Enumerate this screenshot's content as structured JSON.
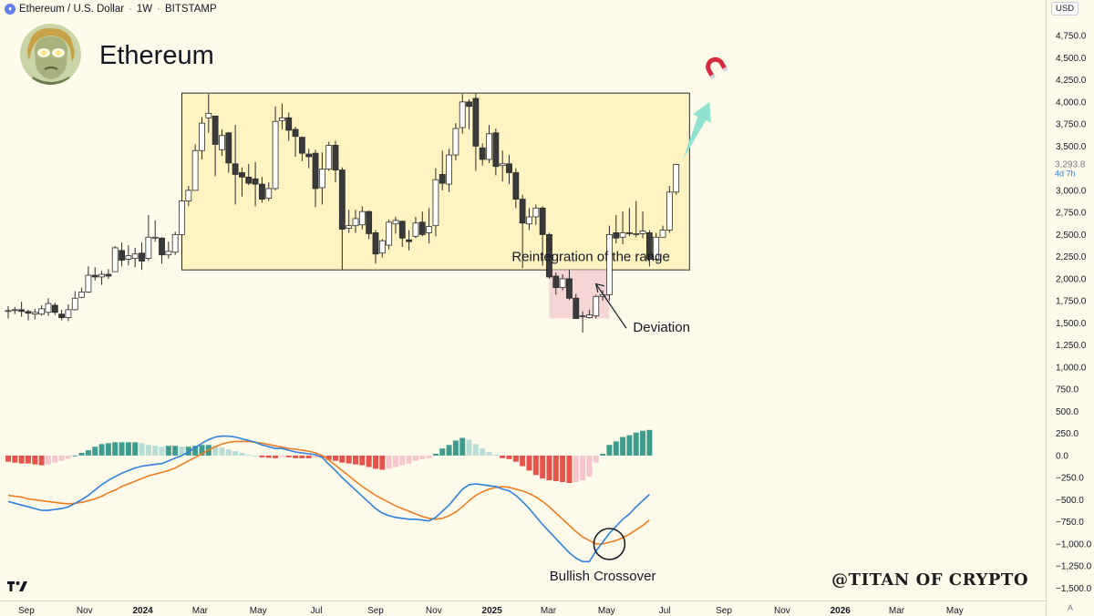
{
  "header": {
    "symbol": "Ethereum / U.S. Dollar",
    "interval": "1W",
    "exchange": "BITSTAMP",
    "separator": "·",
    "eth_icon": "♦"
  },
  "brand": {
    "title": "Ethereum",
    "avatar_icon": "glowing-eyes-avatar"
  },
  "currency": "USD",
  "auto_label": "A",
  "watermark": "@TITAN OF CRYPTO",
  "chart_data": {
    "type": "candlestick",
    "y_axis": {
      "min": -1650,
      "max": 5050,
      "ticks": [
        -1500,
        -1250,
        -1000,
        -750,
        -500,
        -250,
        0,
        250,
        500,
        750,
        1000,
        1250,
        1500,
        1750,
        2000,
        2250,
        2500,
        2750,
        3000,
        3250,
        3500,
        3750,
        4000,
        4250,
        4500,
        4750
      ],
      "tick_labels": [
        "−1,500.0",
        "−1,250.0",
        "−1,000.0",
        "−750.0",
        "−500.0",
        "−250.0",
        "0.0",
        "250.0",
        "500.0",
        "750.0",
        "1,000.0",
        "1,250.0",
        "1,500.0",
        "1,750.0",
        "2,000.0",
        "2,250.0",
        "2,500.0",
        "2,750.0",
        "3,000.0",
        "3,250.0",
        "3,500.0",
        "3,750.0",
        "4,000.0",
        "4,250.0",
        "4,500.0",
        "4,750.0"
      ]
    },
    "x_axis": {
      "start": "2023-08-13",
      "tick_labels": [
        "Sep",
        "Nov",
        "2024",
        "Mar",
        "May",
        "Jul",
        "Sep",
        "Nov",
        "2025",
        "Mar",
        "May",
        "Jul",
        "Sep",
        "Nov",
        "2026",
        "Mar",
        "May"
      ],
      "tick_dates": [
        "2023-09-01",
        "2023-11-01",
        "2024-01-01",
        "2024-03-01",
        "2024-05-01",
        "2024-07-01",
        "2024-09-01",
        "2024-11-01",
        "2025-01-01",
        "2025-03-01",
        "2025-05-01",
        "2025-07-01",
        "2025-09-01",
        "2025-11-01",
        "2026-01-01",
        "2026-03-01",
        "2026-05-01"
      ],
      "bold_ticks": [
        "2024",
        "2025",
        "2026"
      ]
    },
    "last_price": {
      "value": 3293.8,
      "label": "3,293.8",
      "countdown": "4d 7h",
      "color": "#787b86"
    },
    "colors": {
      "up_body": "#ffffff",
      "down_body": "#3a3a3a",
      "wick": "#2b2b2b",
      "macd_line": "#2f7fe0",
      "signal_line": "#ef7d22",
      "hist_up_strong": "#3e9c8f",
      "hist_up_weak": "#b7ddd6",
      "hist_down_strong": "#e5534b",
      "hist_down_weak": "#f7c6cc",
      "range_fill": "#fff3c2",
      "deviation_fill": "#f6d6d4",
      "arrow": "#8fe3d0"
    },
    "candles": [
      {
        "date": "2023-08-13",
        "o": 1640,
        "h": 1690,
        "l": 1550,
        "c": 1640
      },
      {
        "date": "2023-08-20",
        "o": 1640,
        "h": 1680,
        "l": 1600,
        "c": 1650
      },
      {
        "date": "2023-08-27",
        "o": 1650,
        "h": 1740,
        "l": 1570,
        "c": 1630
      },
      {
        "date": "2023-09-03",
        "o": 1630,
        "h": 1650,
        "l": 1530,
        "c": 1610
      },
      {
        "date": "2023-09-10",
        "o": 1600,
        "h": 1660,
        "l": 1540,
        "c": 1620
      },
      {
        "date": "2023-09-17",
        "o": 1600,
        "h": 1700,
        "l": 1580,
        "c": 1660
      },
      {
        "date": "2023-09-24",
        "o": 1620,
        "h": 1780,
        "l": 1580,
        "c": 1720
      },
      {
        "date": "2023-10-01",
        "o": 1700,
        "h": 1730,
        "l": 1590,
        "c": 1620
      },
      {
        "date": "2023-10-08",
        "o": 1600,
        "h": 1650,
        "l": 1530,
        "c": 1560
      },
      {
        "date": "2023-10-15",
        "o": 1560,
        "h": 1710,
        "l": 1520,
        "c": 1650
      },
      {
        "date": "2023-10-22",
        "o": 1650,
        "h": 1860,
        "l": 1640,
        "c": 1780
      },
      {
        "date": "2023-10-29",
        "o": 1790,
        "h": 1900,
        "l": 1780,
        "c": 1850
      },
      {
        "date": "2023-11-05",
        "o": 1850,
        "h": 2140,
        "l": 1840,
        "c": 2040
      },
      {
        "date": "2023-11-12",
        "o": 2040,
        "h": 2130,
        "l": 1980,
        "c": 2020
      },
      {
        "date": "2023-11-19",
        "o": 2020,
        "h": 2090,
        "l": 1930,
        "c": 2050
      },
      {
        "date": "2023-11-26",
        "o": 2050,
        "h": 2110,
        "l": 2000,
        "c": 2030
      },
      {
        "date": "2023-12-03",
        "o": 2080,
        "h": 2370,
        "l": 2080,
        "c": 2350
      },
      {
        "date": "2023-12-10",
        "o": 2320,
        "h": 2410,
        "l": 2140,
        "c": 2210
      },
      {
        "date": "2023-12-17",
        "o": 2220,
        "h": 2380,
        "l": 2150,
        "c": 2260
      },
      {
        "date": "2023-12-24",
        "o": 2230,
        "h": 2350,
        "l": 2130,
        "c": 2280
      },
      {
        "date": "2023-12-31",
        "o": 2290,
        "h": 2410,
        "l": 2100,
        "c": 2200
      },
      {
        "date": "2024-01-07",
        "o": 2230,
        "h": 2720,
        "l": 2200,
        "c": 2470
      },
      {
        "date": "2024-01-14",
        "o": 2470,
        "h": 2660,
        "l": 2420,
        "c": 2470
      },
      {
        "date": "2024-01-21",
        "o": 2460,
        "h": 2470,
        "l": 2170,
        "c": 2270
      },
      {
        "date": "2024-01-28",
        "o": 2270,
        "h": 2420,
        "l": 2230,
        "c": 2310
      },
      {
        "date": "2024-02-04",
        "o": 2300,
        "h": 2530,
        "l": 2270,
        "c": 2500
      },
      {
        "date": "2024-02-11",
        "o": 2500,
        "h": 2910,
        "l": 2480,
        "c": 2880
      },
      {
        "date": "2024-02-18",
        "o": 2880,
        "h": 3050,
        "l": 2820,
        "c": 3000
      },
      {
        "date": "2024-02-25",
        "o": 3000,
        "h": 3520,
        "l": 3000,
        "c": 3450
      },
      {
        "date": "2024-03-03",
        "o": 3450,
        "h": 3830,
        "l": 3350,
        "c": 3760
      },
      {
        "date": "2024-03-10",
        "o": 3820,
        "h": 4090,
        "l": 3650,
        "c": 3870
      },
      {
        "date": "2024-03-17",
        "o": 3840,
        "h": 3840,
        "l": 3160,
        "c": 3520
      },
      {
        "date": "2024-03-24",
        "o": 3460,
        "h": 3690,
        "l": 3390,
        "c": 3620
      },
      {
        "date": "2024-03-31",
        "o": 3650,
        "h": 3660,
        "l": 3200,
        "c": 3310
      },
      {
        "date": "2024-04-07",
        "o": 3300,
        "h": 3740,
        "l": 2840,
        "c": 3180
      },
      {
        "date": "2024-04-14",
        "o": 3200,
        "h": 3260,
        "l": 2930,
        "c": 3150
      },
      {
        "date": "2024-04-21",
        "o": 3150,
        "h": 3300,
        "l": 3060,
        "c": 3080
      },
      {
        "date": "2024-04-28",
        "o": 3130,
        "h": 3320,
        "l": 2820,
        "c": 3070
      },
      {
        "date": "2024-05-05",
        "o": 3070,
        "h": 3150,
        "l": 2860,
        "c": 2900
      },
      {
        "date": "2024-05-12",
        "o": 2910,
        "h": 3090,
        "l": 2880,
        "c": 3020
      },
      {
        "date": "2024-05-19",
        "o": 3020,
        "h": 3950,
        "l": 3000,
        "c": 3780
      },
      {
        "date": "2024-05-26",
        "o": 3790,
        "h": 3980,
        "l": 3690,
        "c": 3820
      },
      {
        "date": "2024-06-02",
        "o": 3820,
        "h": 3880,
        "l": 3560,
        "c": 3680
      },
      {
        "date": "2024-06-09",
        "o": 3690,
        "h": 3720,
        "l": 3380,
        "c": 3610
      },
      {
        "date": "2024-06-16",
        "o": 3600,
        "h": 3610,
        "l": 3330,
        "c": 3420
      },
      {
        "date": "2024-06-23",
        "o": 3410,
        "h": 3470,
        "l": 3250,
        "c": 3380
      },
      {
        "date": "2024-06-30",
        "o": 3420,
        "h": 3460,
        "l": 2810,
        "c": 3020
      },
      {
        "date": "2024-07-07",
        "o": 3030,
        "h": 3430,
        "l": 2840,
        "c": 3240
      },
      {
        "date": "2024-07-14",
        "o": 3240,
        "h": 3550,
        "l": 3220,
        "c": 3510
      },
      {
        "date": "2024-07-21",
        "o": 3510,
        "h": 3560,
        "l": 3090,
        "c": 3230
      },
      {
        "date": "2024-07-28",
        "o": 3230,
        "h": 3260,
        "l": 2100,
        "c": 2560
      },
      {
        "date": "2024-08-04",
        "o": 2570,
        "h": 2780,
        "l": 2520,
        "c": 2600
      },
      {
        "date": "2024-08-11",
        "o": 2600,
        "h": 2780,
        "l": 2520,
        "c": 2680
      },
      {
        "date": "2024-08-18",
        "o": 2610,
        "h": 2820,
        "l": 2560,
        "c": 2760
      },
      {
        "date": "2024-08-25",
        "o": 2760,
        "h": 2770,
        "l": 2450,
        "c": 2510
      },
      {
        "date": "2024-09-01",
        "o": 2520,
        "h": 2550,
        "l": 2170,
        "c": 2280
      },
      {
        "date": "2024-09-08",
        "o": 2290,
        "h": 2450,
        "l": 2240,
        "c": 2430
      },
      {
        "date": "2024-09-15",
        "o": 2380,
        "h": 2670,
        "l": 2330,
        "c": 2640
      },
      {
        "date": "2024-09-22",
        "o": 2620,
        "h": 2700,
        "l": 2510,
        "c": 2660
      },
      {
        "date": "2024-09-29",
        "o": 2650,
        "h": 2660,
        "l": 2360,
        "c": 2460
      },
      {
        "date": "2024-10-06",
        "o": 2440,
        "h": 2550,
        "l": 2320,
        "c": 2420
      },
      {
        "date": "2024-10-13",
        "o": 2480,
        "h": 2700,
        "l": 2460,
        "c": 2630
      },
      {
        "date": "2024-10-20",
        "o": 2640,
        "h": 2760,
        "l": 2480,
        "c": 2500
      },
      {
        "date": "2024-10-27",
        "o": 2520,
        "h": 2800,
        "l": 2400,
        "c": 2590
      },
      {
        "date": "2024-11-03",
        "o": 2600,
        "h": 3250,
        "l": 2480,
        "c": 3120
      },
      {
        "date": "2024-11-10",
        "o": 3180,
        "h": 3450,
        "l": 3000,
        "c": 3080
      },
      {
        "date": "2024-11-17",
        "o": 3070,
        "h": 3470,
        "l": 2980,
        "c": 3400
      },
      {
        "date": "2024-11-24",
        "o": 3400,
        "h": 3760,
        "l": 3340,
        "c": 3700
      },
      {
        "date": "2024-12-01",
        "o": 3710,
        "h": 4090,
        "l": 3640,
        "c": 4000
      },
      {
        "date": "2024-12-08",
        "o": 4000,
        "h": 4030,
        "l": 3690,
        "c": 3950
      },
      {
        "date": "2024-12-15",
        "o": 4040,
        "h": 4100,
        "l": 3220,
        "c": 3500
      },
      {
        "date": "2024-12-22",
        "o": 3480,
        "h": 3530,
        "l": 3280,
        "c": 3350
      },
      {
        "date": "2024-12-29",
        "o": 3350,
        "h": 3740,
        "l": 3310,
        "c": 3640
      },
      {
        "date": "2025-01-05",
        "o": 3650,
        "h": 3700,
        "l": 3170,
        "c": 3270
      },
      {
        "date": "2025-01-12",
        "o": 3280,
        "h": 3450,
        "l": 3100,
        "c": 3300
      },
      {
        "date": "2025-01-19",
        "o": 3300,
        "h": 3400,
        "l": 3070,
        "c": 3200
      },
      {
        "date": "2025-01-26",
        "o": 3200,
        "h": 3250,
        "l": 2800,
        "c": 2900
      },
      {
        "date": "2025-02-02",
        "o": 2900,
        "h": 2950,
        "l": 2120,
        "c": 2630
      },
      {
        "date": "2025-02-09",
        "o": 2620,
        "h": 2800,
        "l": 2550,
        "c": 2700
      },
      {
        "date": "2025-02-16",
        "o": 2700,
        "h": 2840,
        "l": 2610,
        "c": 2800
      },
      {
        "date": "2025-02-23",
        "o": 2800,
        "h": 2820,
        "l": 2150,
        "c": 2500
      },
      {
        "date": "2025-03-02",
        "o": 2500,
        "h": 2520,
        "l": 2000,
        "c": 2020
      },
      {
        "date": "2025-03-09",
        "o": 2030,
        "h": 2070,
        "l": 1820,
        "c": 1900
      },
      {
        "date": "2025-03-16",
        "o": 1900,
        "h": 2050,
        "l": 1870,
        "c": 2000
      },
      {
        "date": "2025-03-23",
        "o": 2000,
        "h": 2100,
        "l": 1760,
        "c": 1780
      },
      {
        "date": "2025-03-30",
        "o": 1780,
        "h": 1830,
        "l": 1550,
        "c": 1550
      },
      {
        "date": "2025-04-06",
        "o": 1580,
        "h": 1630,
        "l": 1390,
        "c": 1580
      },
      {
        "date": "2025-04-13",
        "o": 1560,
        "h": 1650,
        "l": 1550,
        "c": 1590
      },
      {
        "date": "2025-04-20",
        "o": 1580,
        "h": 1820,
        "l": 1550,
        "c": 1800
      },
      {
        "date": "2025-04-27",
        "o": 1800,
        "h": 1870,
        "l": 1750,
        "c": 1820
      },
      {
        "date": "2025-05-04",
        "o": 1820,
        "h": 2600,
        "l": 1750,
        "c": 2500
      },
      {
        "date": "2025-05-11",
        "o": 2520,
        "h": 2720,
        "l": 2400,
        "c": 2460
      },
      {
        "date": "2025-05-18",
        "o": 2470,
        "h": 2760,
        "l": 2390,
        "c": 2520
      },
      {
        "date": "2025-05-25",
        "o": 2520,
        "h": 2800,
        "l": 2480,
        "c": 2510
      },
      {
        "date": "2025-06-01",
        "o": 2500,
        "h": 2880,
        "l": 2470,
        "c": 2510
      },
      {
        "date": "2025-06-08",
        "o": 2510,
        "h": 2760,
        "l": 2460,
        "c": 2540
      },
      {
        "date": "2025-06-15",
        "o": 2520,
        "h": 2550,
        "l": 2140,
        "c": 2220
      },
      {
        "date": "2025-06-22",
        "o": 2220,
        "h": 2520,
        "l": 2200,
        "c": 2470
      },
      {
        "date": "2025-06-29",
        "o": 2470,
        "h": 2600,
        "l": 2470,
        "c": 2550
      },
      {
        "date": "2025-07-06",
        "o": 2550,
        "h": 3050,
        "l": 2520,
        "c": 2980
      },
      {
        "date": "2025-07-13",
        "o": 2980,
        "h": 3300,
        "l": 2950,
        "c": 3293.8
      }
    ],
    "macd": {
      "start": "2023-08-13",
      "macd_line": [
        -520,
        -540,
        -560,
        -580,
        -600,
        -620,
        -620,
        -610,
        -600,
        -580,
        -540,
        -500,
        -450,
        -390,
        -330,
        -280,
        -240,
        -200,
        -170,
        -140,
        -120,
        -110,
        -100,
        -90,
        -60,
        -30,
        0,
        40,
        90,
        140,
        180,
        210,
        220,
        220,
        210,
        190,
        170,
        150,
        120,
        100,
        80,
        80,
        60,
        40,
        30,
        20,
        10,
        -20,
        -100,
        -170,
        -250,
        -320,
        -390,
        -460,
        -530,
        -600,
        -650,
        -680,
        -700,
        -710,
        -720,
        -720,
        -730,
        -740,
        -700,
        -630,
        -560,
        -470,
        -380,
        -330,
        -320,
        -330,
        -340,
        -350,
        -380,
        -400,
        -450,
        -520,
        -600,
        -690,
        -780,
        -860,
        -940,
        -1020,
        -1100,
        -1160,
        -1200,
        -1200,
        -1080,
        -980,
        -880,
        -800,
        -720,
        -660,
        -580,
        -510,
        -440
      ],
      "signal_line": [
        -450,
        -460,
        -470,
        -490,
        -500,
        -510,
        -520,
        -530,
        -540,
        -545,
        -540,
        -530,
        -510,
        -490,
        -460,
        -420,
        -390,
        -350,
        -320,
        -290,
        -260,
        -230,
        -210,
        -190,
        -170,
        -140,
        -100,
        -60,
        -20,
        20,
        60,
        100,
        130,
        150,
        160,
        160,
        160,
        150,
        140,
        125,
        110,
        95,
        80,
        70,
        60,
        50,
        30,
        0,
        -50,
        -110,
        -170,
        -230,
        -290,
        -350,
        -400,
        -450,
        -490,
        -530,
        -570,
        -600,
        -630,
        -660,
        -690,
        -710,
        -720,
        -710,
        -680,
        -640,
        -580,
        -510,
        -450,
        -410,
        -380,
        -360,
        -350,
        -360,
        -380,
        -400,
        -430,
        -470,
        -520,
        -580,
        -650,
        -720,
        -790,
        -860,
        -920,
        -960,
        -1000,
        -1000,
        -980,
        -960,
        -930,
        -890,
        -840,
        -790,
        -730
      ],
      "histogram": [
        -70,
        -80,
        -90,
        -90,
        -100,
        -110,
        -100,
        -80,
        -60,
        -35,
        0,
        30,
        60,
        100,
        130,
        140,
        150,
        150,
        150,
        150,
        140,
        120,
        110,
        100,
        110,
        110,
        100,
        100,
        110,
        120,
        120,
        110,
        90,
        70,
        50,
        30,
        10,
        0,
        -20,
        -25,
        -30,
        -15,
        -20,
        -30,
        -30,
        -30,
        -20,
        -20,
        -50,
        -60,
        -80,
        -90,
        -100,
        -110,
        -130,
        -150,
        -160,
        -150,
        -130,
        -110,
        -90,
        -60,
        -40,
        -30,
        20,
        80,
        120,
        170,
        200,
        180,
        130,
        80,
        40,
        10,
        -30,
        -40,
        -70,
        -120,
        -170,
        -220,
        -260,
        -280,
        -290,
        -300,
        -310,
        -300,
        -280,
        -240,
        -80,
        20,
        120,
        160,
        210,
        230,
        260,
        280,
        290
      ]
    },
    "annotations": {
      "range_box": {
        "start": "2024-02-11",
        "end": "2025-07-27",
        "top": 4100,
        "bottom": 2100
      },
      "deviation_box": {
        "start": "2025-03-02",
        "end": "2025-05-04",
        "top": 2100,
        "bottom": 1550
      },
      "reintegration_label": "Reintegration of the range",
      "deviation_label": "Deviation",
      "bullish_crossover_label": "Bullish Crossover",
      "target_arrow": {
        "from": {
          "date": "2025-07-20",
          "value": 3350
        },
        "to": {
          "date": "2025-08-17",
          "value": 4000
        }
      },
      "magnet_icon": "magnet-icon"
    }
  }
}
